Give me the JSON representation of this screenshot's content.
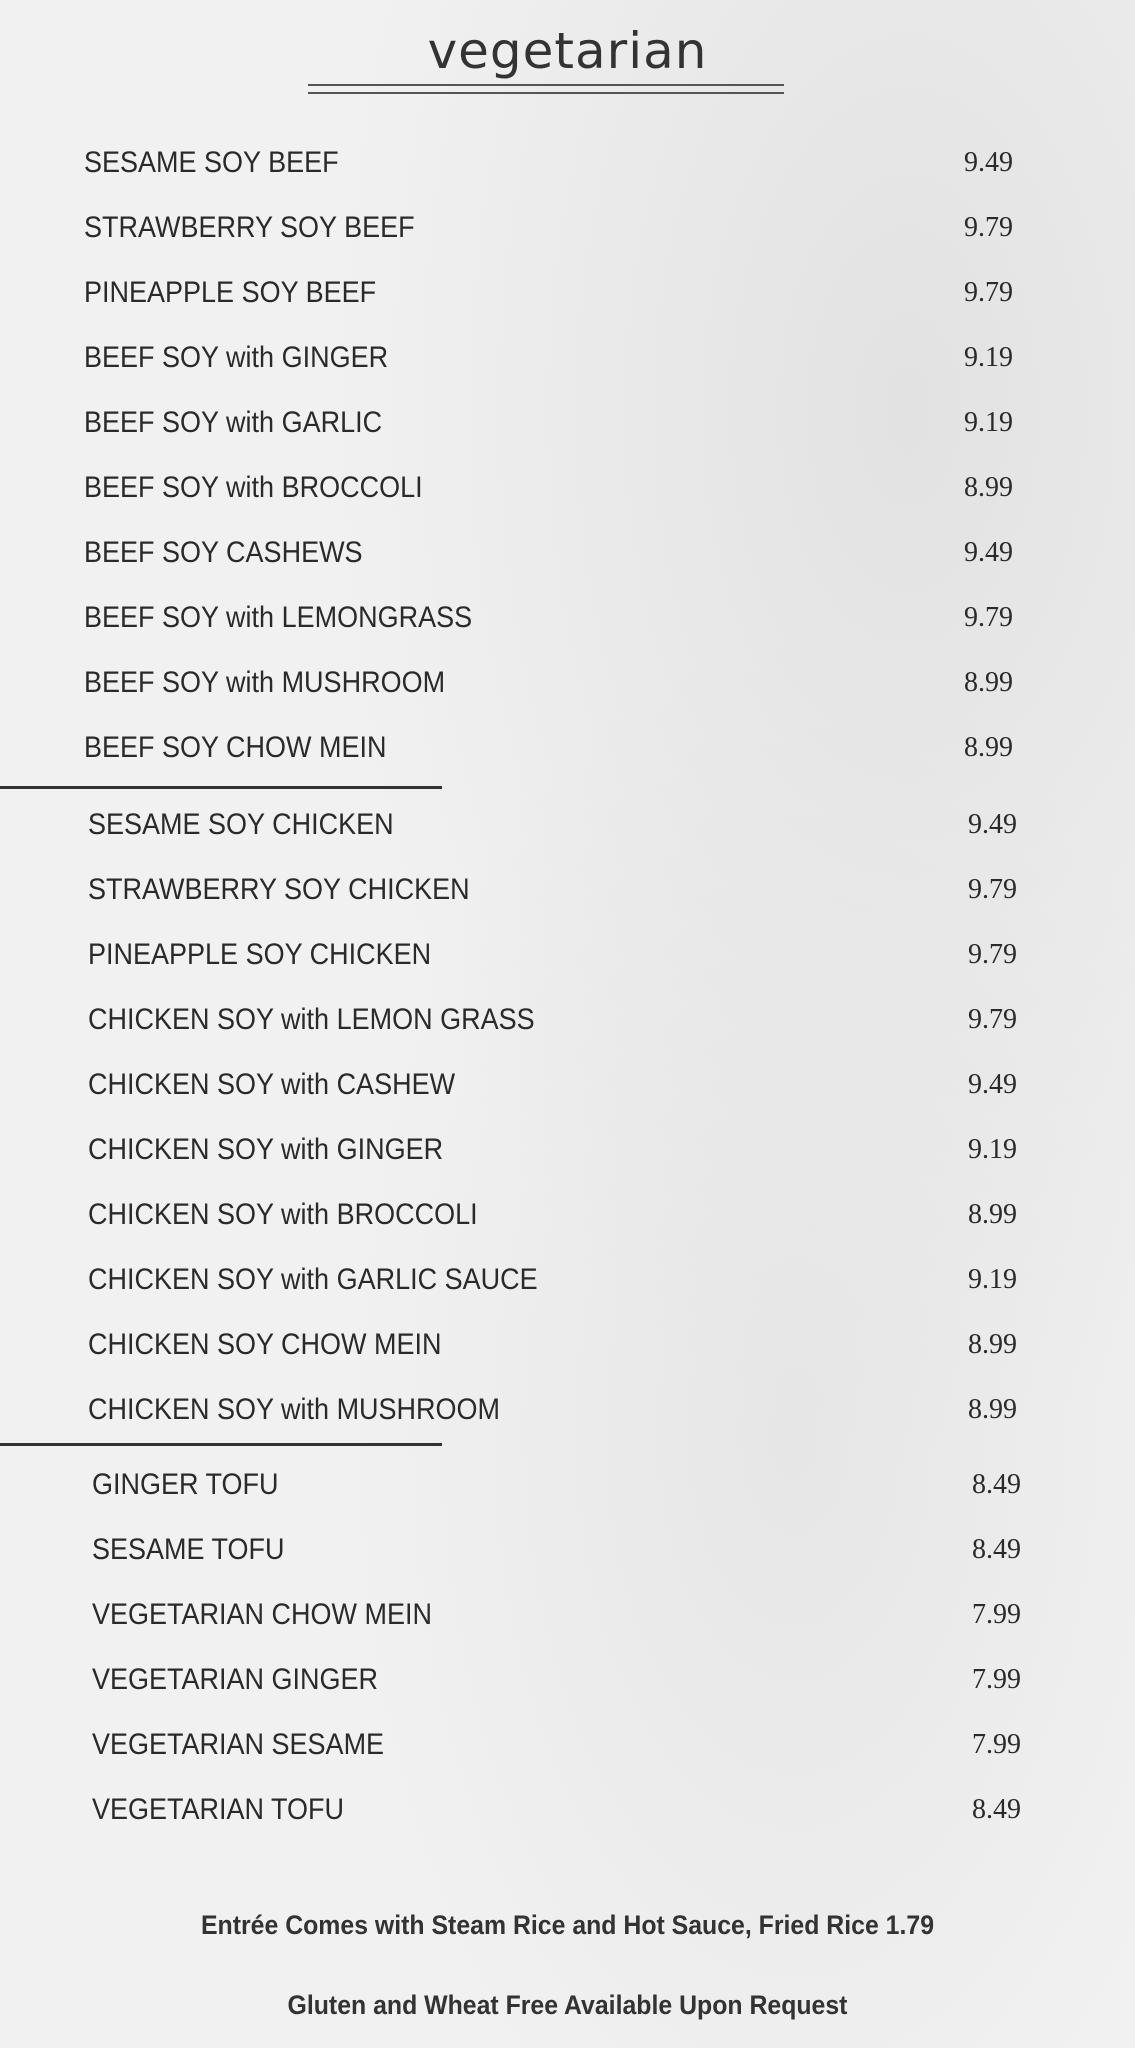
{
  "title": "vegetarian",
  "sections": [
    {
      "items": [
        {
          "name": "SESAME SOY BEEF",
          "price": "9.49"
        },
        {
          "name": "STRAWBERRY SOY BEEF",
          "price": "9.79"
        },
        {
          "name": "PINEAPPLE SOY BEEF",
          "price": "9.79"
        },
        {
          "name": "BEEF SOY with GINGER",
          "price": "9.19"
        },
        {
          "name": "BEEF SOY with GARLIC",
          "price": "9.19"
        },
        {
          "name": "BEEF SOY with BROCCOLI",
          "price": "8.99"
        },
        {
          "name": "BEEF SOY CASHEWS",
          "price": "9.49"
        },
        {
          "name": "BEEF SOY with LEMONGRASS",
          "price": "9.79"
        },
        {
          "name": "BEEF SOY with MUSHROOM",
          "price": "8.99"
        },
        {
          "name": "BEEF SOY CHOW MEIN",
          "price": "8.99"
        }
      ]
    },
    {
      "items": [
        {
          "name": "SESAME SOY CHICKEN",
          "price": "9.49"
        },
        {
          "name": "STRAWBERRY SOY CHICKEN",
          "price": "9.79"
        },
        {
          "name": "PINEAPPLE SOY CHICKEN",
          "price": "9.79"
        },
        {
          "name": "CHICKEN SOY with LEMON GRASS",
          "price": "9.79"
        },
        {
          "name": "CHICKEN SOY with CASHEW",
          "price": "9.49"
        },
        {
          "name": "CHICKEN SOY with GINGER",
          "price": "9.19"
        },
        {
          "name": "CHICKEN SOY with BROCCOLI",
          "price": "8.99"
        },
        {
          "name": "CHICKEN SOY with GARLIC SAUCE",
          "price": "9.19"
        },
        {
          "name": "CHICKEN SOY CHOW MEIN",
          "price": "8.99"
        },
        {
          "name": "CHICKEN SOY with MUSHROOM",
          "price": "8.99"
        }
      ]
    },
    {
      "items": [
        {
          "name": "GINGER TOFU",
          "price": "8.49"
        },
        {
          "name": "SESAME TOFU",
          "price": "8.49"
        },
        {
          "name": "VEGETARIAN CHOW MEIN",
          "price": "7.99"
        },
        {
          "name": "VEGETARIAN GINGER",
          "price": "7.99"
        },
        {
          "name": "VEGETARIAN SESAME",
          "price": "7.99"
        },
        {
          "name": "VEGETARIAN TOFU",
          "price": "8.49"
        }
      ]
    }
  ],
  "footer": {
    "line1": "Entrée Comes with Steam Rice and Hot Sauce, Fried Rice 1.79",
    "line2": "Gluten and Wheat Free Available Upon Request"
  }
}
